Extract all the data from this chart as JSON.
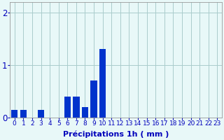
{
  "hours": [
    0,
    1,
    2,
    3,
    4,
    5,
    6,
    7,
    8,
    9,
    10,
    11,
    12,
    13,
    14,
    15,
    16,
    17,
    18,
    19,
    20,
    21,
    22,
    23
  ],
  "values": [
    0.15,
    0.15,
    0.0,
    0.15,
    0.0,
    0.0,
    0.4,
    0.4,
    0.2,
    0.7,
    1.3,
    0.0,
    0.0,
    0.0,
    0.0,
    0.0,
    0.0,
    0.0,
    0.0,
    0.0,
    0.0,
    0.0,
    0.0,
    0.0
  ],
  "bar_color": "#0033cc",
  "background_color": "#e8f8f8",
  "grid_color": "#aacccc",
  "axis_label_color": "#0000bb",
  "tick_color": "#0000bb",
  "ylabel_ticks": [
    0,
    1,
    2
  ],
  "ylim": [
    0,
    2.2
  ],
  "xlabel": "Précipitations 1h ( mm )",
  "xlabel_fontsize": 8,
  "tick_fontsize": 6.5,
  "ytick_fontsize": 8.5,
  "bar_width": 0.75
}
